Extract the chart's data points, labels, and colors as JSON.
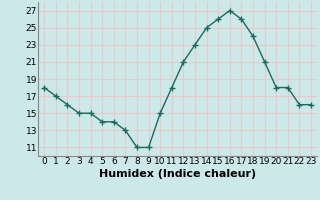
{
  "x": [
    0,
    1,
    2,
    3,
    4,
    5,
    6,
    7,
    8,
    9,
    10,
    11,
    12,
    13,
    14,
    15,
    16,
    17,
    18,
    19,
    20,
    21,
    22,
    23
  ],
  "y": [
    18,
    17,
    16,
    15,
    15,
    14,
    14,
    13,
    11,
    11,
    15,
    18,
    21,
    23,
    25,
    26,
    27,
    26,
    24,
    21,
    18,
    18,
    16,
    16
  ],
  "xlabel": "Humidex (Indice chaleur)",
  "ylim": [
    10,
    28
  ],
  "xlim": [
    -0.5,
    23.5
  ],
  "yticks": [
    11,
    13,
    15,
    17,
    19,
    21,
    23,
    25,
    27
  ],
  "xticks": [
    0,
    1,
    2,
    3,
    4,
    5,
    6,
    7,
    8,
    9,
    10,
    11,
    12,
    13,
    14,
    15,
    16,
    17,
    18,
    19,
    20,
    21,
    22,
    23
  ],
  "line_color": "#1a6b5e",
  "marker": "+",
  "bg_color": "#cce8e8",
  "grid_color": "#e8c8c8",
  "xlabel_fontsize": 8,
  "tick_fontsize": 6.5
}
